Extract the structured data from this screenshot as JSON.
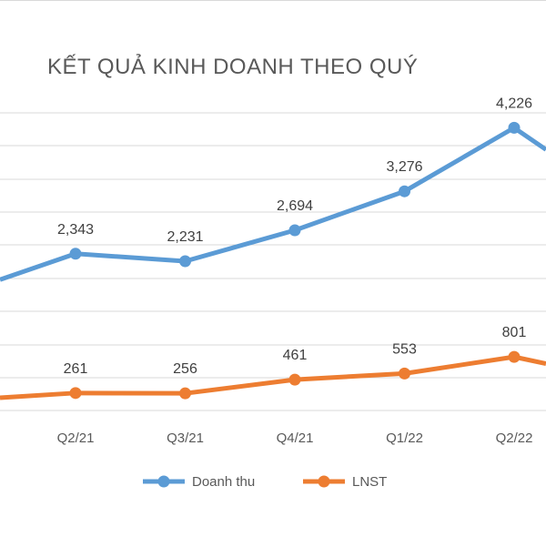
{
  "chart_data": {
    "type": "line",
    "title": "KẾT QUẢ KINH DOANH THEO QUÝ",
    "categories": [
      "Q2/21",
      "Q3/21",
      "Q4/21",
      "Q1/22",
      "Q2/22"
    ],
    "series": [
      {
        "name": "Doanh thu",
        "values": [
          2343,
          2231,
          2694,
          3276,
          4226
        ],
        "labels": [
          "2,343",
          "2,231",
          "2,694",
          "3,276",
          "4,226"
        ],
        "color": "#5b9bd5"
      },
      {
        "name": "LNST",
        "values": [
          261,
          256,
          461,
          553,
          801
        ],
        "labels": [
          "261",
          "256",
          "461",
          "553",
          "801"
        ],
        "color": "#ed7d31"
      }
    ],
    "ylim": [
      0,
      4500
    ],
    "grid": true,
    "legend": "bottom"
  }
}
